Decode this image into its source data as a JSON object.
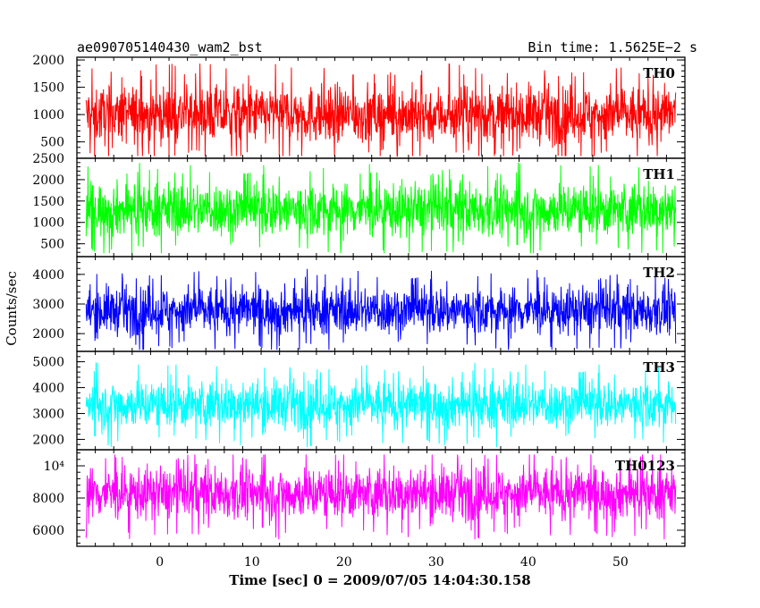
{
  "header": {
    "title": "ae090705140430_wam2_bst",
    "bin_time": "Bin time: 1.5625E−2 s"
  },
  "chart_data": {
    "type": "line",
    "title": "ae090705140430_wam2_bst",
    "xlabel": "Time [sec] 0 = 2009/07/05 14:04:30.158",
    "ylabel": "Counts/sec",
    "xlim": [
      -9,
      57
    ],
    "x_range_data": [
      -8,
      56
    ],
    "x_ticks": [
      0,
      10,
      20,
      30,
      40,
      50
    ],
    "x_tick_labels": [
      "0",
      "10",
      "20",
      "30",
      "40",
      "50"
    ],
    "bin_time_s": 0.015625,
    "grid": false,
    "panels": [
      {
        "name": "TH0",
        "color": "#ff0000",
        "ylim": [
          200,
          2050
        ],
        "mean": 1000,
        "spread": 260,
        "min": 240,
        "max": 2000,
        "yticks": [
          500,
          1000,
          1500,
          2000
        ],
        "ytick_labels": [
          "500",
          "1000",
          "1500",
          "2000"
        ]
      },
      {
        "name": "TH1",
        "color": "#00ff00",
        "ylim": [
          200,
          2500
        ],
        "mean": 1300,
        "spread": 310,
        "min": 280,
        "max": 2400,
        "yticks": [
          500,
          1000,
          1500,
          2000,
          2500
        ],
        "ytick_labels": [
          "500",
          "1000",
          "1500",
          "2000",
          "2500"
        ]
      },
      {
        "name": "TH2",
        "color": "#0000ff",
        "ylim": [
          1400,
          4600
        ],
        "mean": 2780,
        "spread": 400,
        "min": 1450,
        "max": 4500,
        "yticks": [
          2000,
          3000,
          4000
        ],
        "ytick_labels": [
          "2000",
          "3000",
          "4000"
        ]
      },
      {
        "name": "TH3",
        "color": "#00ffff",
        "ylim": [
          1600,
          5400
        ],
        "mean": 3350,
        "spread": 460,
        "min": 1650,
        "max": 5300,
        "yticks": [
          2000,
          3000,
          4000,
          5000
        ],
        "ytick_labels": [
          "2000",
          "3000",
          "4000",
          "5000"
        ]
      },
      {
        "name": "TH0123",
        "color": "#ff00ff",
        "ylim": [
          5000,
          11000
        ],
        "mean": 8300,
        "spread": 800,
        "min": 5050,
        "max": 10700,
        "yticks": [
          6000,
          8000,
          10000
        ],
        "ytick_labels": [
          "6000",
          "8000",
          "10⁴"
        ]
      }
    ]
  }
}
